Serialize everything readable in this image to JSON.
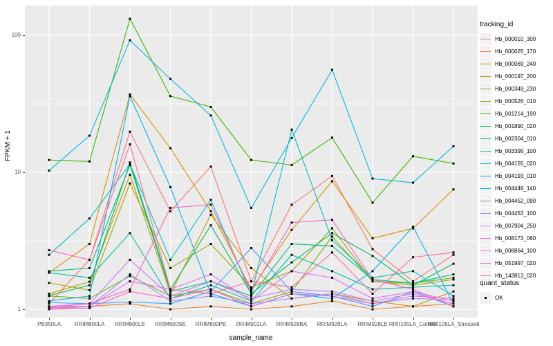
{
  "figure": {
    "xlabel": "sample_name",
    "ylabel": "FPKM + 1"
  },
  "legend": {
    "tracking_title": "tracking_id",
    "quant_title": "quant_status",
    "quant_items": [
      {
        "label": "OK"
      }
    ]
  },
  "chart_data": {
    "type": "line",
    "title": "",
    "xlabel": "sample_name",
    "ylabel": "FPKM + 1",
    "y_scale": "log10",
    "y_ticks": [
      1,
      10,
      100
    ],
    "y_minor_ticks": [
      3.162,
      31.62
    ],
    "ylim": [
      0.88,
      160
    ],
    "grid": "on",
    "legend_position": "right",
    "panel_bg": "#EBEBEB",
    "grid_color": "#FFFFFF",
    "marker": {
      "shape": "square",
      "color": "#000000",
      "meaning": "quant_status OK"
    },
    "categories": [
      "PB350LA",
      "RRIM600LA",
      "RRIM600LE",
      "RRIM600SE",
      "RRIM600PE",
      "RRIM901LA",
      "RRIM928BA",
      "RRIM928LA",
      "RRIM928LE",
      "RRII105LA_Control",
      "RRII105LA_Stressed"
    ],
    "series": [
      {
        "name": "Hb_000010_300",
        "color": "#F8766D",
        "values": [
          1.1,
          2.3,
          19.8,
          5.2,
          11.0,
          1.6,
          5.8,
          9.4,
          2.75,
          1.6,
          2.5
        ]
      },
      {
        "name": "Hb_000025_170",
        "color": "#EA8331",
        "values": [
          1.0,
          1.05,
          1.1,
          1.0,
          1.05,
          1.0,
          1.05,
          1.15,
          1.0,
          1.05,
          1.1
        ]
      },
      {
        "name": "Hb_000069_240",
        "color": "#D89000",
        "values": [
          1.85,
          3.0,
          37.0,
          15.0,
          5.2,
          1.4,
          3.8,
          8.6,
          3.3,
          3.9,
          7.5
        ]
      },
      {
        "name": "Hb_000197_200",
        "color": "#C09B00",
        "values": [
          1.3,
          1.59,
          9.6,
          1.3,
          4.9,
          2.0,
          1.2,
          1.3,
          1.15,
          1.05,
          1.35
        ]
      },
      {
        "name": "Hb_000349_230",
        "color": "#A3A500",
        "values": [
          1.56,
          1.38,
          8.3,
          2.0,
          3.0,
          1.45,
          1.9,
          3.9,
          1.6,
          1.5,
          1.65
        ]
      },
      {
        "name": "Hb_000526_010",
        "color": "#7CAE00",
        "values": [
          1.25,
          1.2,
          1.75,
          1.25,
          1.4,
          1.1,
          1.35,
          3.4,
          1.6,
          1.55,
          1.7
        ]
      },
      {
        "name": "Hb_001214_190",
        "color": "#39B600",
        "values": [
          12.3,
          12.0,
          132.0,
          36.0,
          30.0,
          12.3,
          11.3,
          17.9,
          6.0,
          13.1,
          11.6
        ]
      },
      {
        "name": "Hb_001890_020",
        "color": "#00BB4E",
        "values": [
          1.26,
          1.5,
          11.8,
          1.4,
          4.1,
          1.3,
          2.2,
          3.6,
          2.45,
          1.5,
          2.15
        ]
      },
      {
        "name": "Hb_002304_010",
        "color": "#00BF7D",
        "values": [
          1.9,
          2.0,
          11.3,
          1.35,
          1.6,
          1.25,
          3.0,
          2.9,
          1.65,
          1.55,
          1.8
        ]
      },
      {
        "name": "Hb_003399_100",
        "color": "#00C1A3",
        "values": [
          1.85,
          1.7,
          3.6,
          1.2,
          1.5,
          1.15,
          2.5,
          1.9,
          1.4,
          1.45,
          1.5
        ]
      },
      {
        "name": "Hb_004155_020",
        "color": "#00BFC4",
        "values": [
          2.5,
          4.6,
          11.5,
          2.3,
          6.3,
          1.28,
          20.5,
          3.2,
          1.7,
          1.9,
          1.25
        ]
      },
      {
        "name": "Hb_004193_010",
        "color": "#00BAE0",
        "values": [
          10.3,
          18.5,
          92.0,
          48.0,
          26.0,
          5.5,
          17.8,
          56.0,
          9.0,
          8.4,
          15.5
        ]
      },
      {
        "name": "Hb_004449_140",
        "color": "#00B0F6",
        "values": [
          1.15,
          1.25,
          36.0,
          7.8,
          1.3,
          1.05,
          1.3,
          1.2,
          1.9,
          4.0,
          1.1
        ]
      },
      {
        "name": "Hb_004452_090",
        "color": "#35A2FF",
        "values": [
          1.12,
          1.1,
          1.13,
          1.1,
          1.35,
          2.8,
          1.35,
          1.25,
          1.05,
          1.35,
          1.05
        ]
      },
      {
        "name": "Hb_004453_100",
        "color": "#9590FF",
        "values": [
          1.05,
          1.05,
          1.8,
          1.15,
          1.25,
          1.1,
          1.2,
          1.3,
          1.1,
          1.2,
          1.17
        ]
      },
      {
        "name": "Hb_007904_250",
        "color": "#C77CFF",
        "values": [
          1.05,
          1.1,
          2.3,
          1.25,
          1.6,
          1.2,
          1.4,
          1.35,
          1.15,
          1.3,
          1.1
        ]
      },
      {
        "name": "Hb_008173_060",
        "color": "#E76BF3",
        "values": [
          1.02,
          1.05,
          1.6,
          1.4,
          1.8,
          1.15,
          1.9,
          1.7,
          1.2,
          1.35,
          1.15
        ]
      },
      {
        "name": "Hb_008864_100",
        "color": "#FA62DB",
        "values": [
          1.0,
          1.02,
          1.35,
          1.2,
          1.4,
          1.05,
          1.3,
          1.25,
          1.1,
          1.25,
          1.2
        ]
      },
      {
        "name": "Hb_051997_020",
        "color": "#FF61C3",
        "values": [
          1.03,
          1.1,
          1.4,
          5.5,
          5.8,
          1.35,
          4.3,
          4.5,
          1.65,
          1.4,
          1.05
        ]
      },
      {
        "name": "Hb_143813_020",
        "color": "#FF67A4",
        "values": [
          2.7,
          2.3,
          16.0,
          1.4,
          1.3,
          1.6,
          1.45,
          2.6,
          1.3,
          2.4,
          2.6
        ]
      }
    ]
  }
}
